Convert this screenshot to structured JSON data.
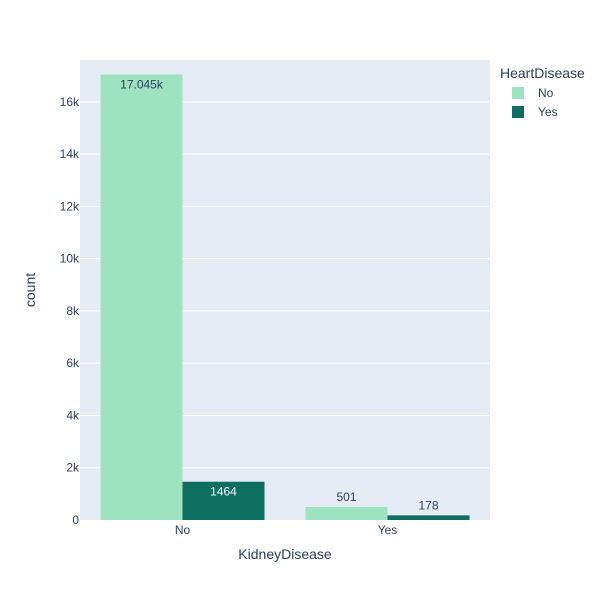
{
  "chart_data": {
    "type": "bar",
    "barmode": "group",
    "xlabel": "KidneyDisease",
    "ylabel": "count",
    "categories": [
      "No",
      "Yes"
    ],
    "ylim": [
      0,
      17600
    ],
    "yticks": [
      0,
      2000,
      4000,
      6000,
      8000,
      10000,
      12000,
      14000,
      16000
    ],
    "ytick_labels": [
      "0",
      "2k",
      "4k",
      "6k",
      "8k",
      "10k",
      "12k",
      "14k",
      "16k"
    ],
    "grid": true,
    "legend": {
      "title": "HeartDisease",
      "placement": "top-right"
    },
    "series": [
      {
        "name": "No",
        "color": "#9ee3bf",
        "values": [
          17045,
          501
        ],
        "labels": [
          "17.045k",
          "501"
        ],
        "label_position": [
          "inside",
          "outside"
        ]
      },
      {
        "name": "Yes",
        "color": "#0d6e61",
        "values": [
          1464,
          178
        ],
        "labels": [
          "1464",
          "178"
        ],
        "label_position": [
          "inside",
          "outside"
        ]
      }
    ],
    "colors": {
      "plot_bg": "#e5ecf6",
      "grid": "#ffffff",
      "text": "#2a3f5f",
      "inside_label_dark": "#2a3f5f",
      "inside_label_light": "#ffffff"
    }
  }
}
